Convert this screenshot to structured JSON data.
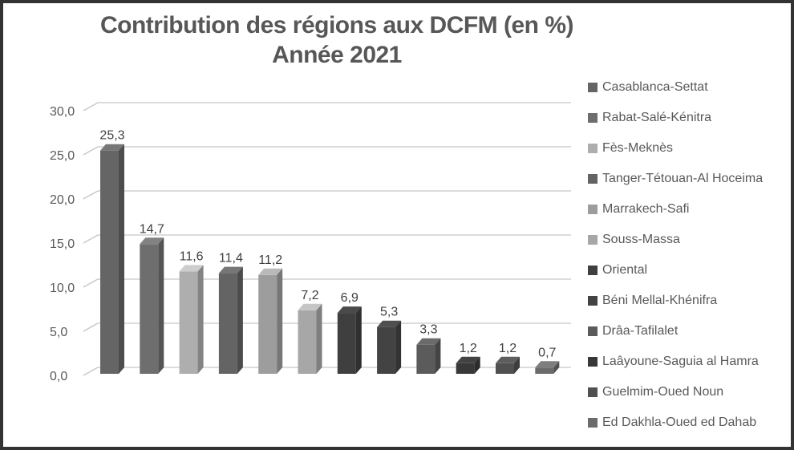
{
  "window": {
    "background": "#ffffff",
    "border_color": "#333333"
  },
  "chart_data": {
    "type": "bar",
    "style": "3d-column",
    "title": "Contribution des régions aux DCFM (en %)",
    "subtitle": "Année 2021",
    "categories": [
      "Casablanca-Settat",
      "Rabat-Salé-Kénitra",
      "Fès-Meknès",
      "Tanger-Tétouan-Al Hoceima",
      "Marrakech-Safi",
      "Souss-Massa",
      "Oriental",
      "Béni Mellal-Khénifra",
      "Drâa-Tafilalet",
      "Laâyoune-Saguia al Hamra",
      "Guelmim-Oued Noun",
      "Ed Dakhla-Oued ed Dahab"
    ],
    "values": [
      25.3,
      14.7,
      11.6,
      11.4,
      11.2,
      7.2,
      6.9,
      5.3,
      3.3,
      1.2,
      1.2,
      0.7
    ],
    "value_labels": [
      "25,3",
      "14,7",
      "11,6",
      "11,4",
      "11,2",
      "7,2",
      "6,9",
      "5,3",
      "3,3",
      "1,2",
      "1,2",
      "0,7"
    ],
    "bar_colors": [
      "#656565",
      "#6e6e6e",
      "#aeaeae",
      "#646464",
      "#9d9d9d",
      "#a7a7a7",
      "#3f3f3f",
      "#434343",
      "#5b5b5b",
      "#383838",
      "#505050",
      "#6b6b6b"
    ],
    "xlabel": "",
    "ylabel": "",
    "ylim": [
      0,
      30
    ],
    "ytick_step": 5,
    "ytick_labels": [
      "0,0",
      "5,0",
      "10,0",
      "15,0",
      "20,0",
      "25,0",
      "30,0"
    ],
    "grid": true,
    "legend_position": "right",
    "gridline_color": "#c6c6c6",
    "axis_text_color": "#595959",
    "value_label_color": "#404040"
  }
}
